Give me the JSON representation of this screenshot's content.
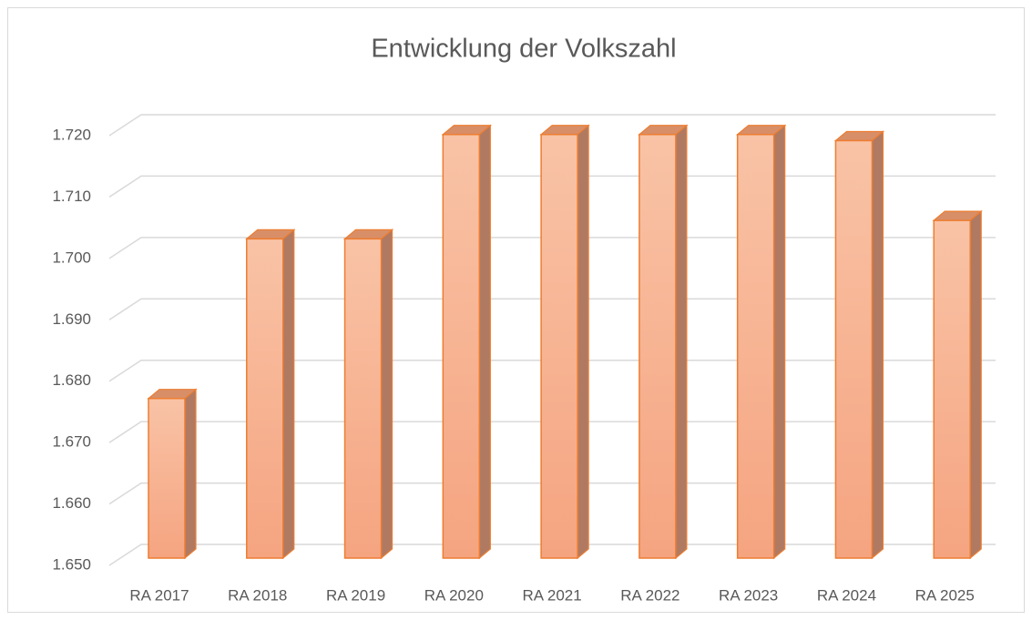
{
  "chart_data": {
    "type": "bar3d",
    "title": "Entwicklung der Volkszahl",
    "categories": [
      "RA 2017",
      "RA 2018",
      "RA 2019",
      "RA 2020",
      "RA 2021",
      "RA 2022",
      "RA 2023",
      "RA 2024",
      "RA 2025"
    ],
    "values": [
      1676,
      1702,
      1702,
      1719,
      1719,
      1719,
      1719,
      1718,
      1705
    ],
    "color": "#f4a582",
    "ylim": [
      1650,
      1720
    ],
    "yticks": [
      {
        "value": 1650,
        "label": "1.650"
      },
      {
        "value": 1660,
        "label": "1.660"
      },
      {
        "value": 1670,
        "label": "1.670"
      },
      {
        "value": 1680,
        "label": "1.680"
      },
      {
        "value": 1690,
        "label": "1.690"
      },
      {
        "value": 1700,
        "label": "1.700"
      },
      {
        "value": 1710,
        "label": "1.710"
      },
      {
        "value": 1720,
        "label": "1.720"
      }
    ],
    "grid": true
  }
}
